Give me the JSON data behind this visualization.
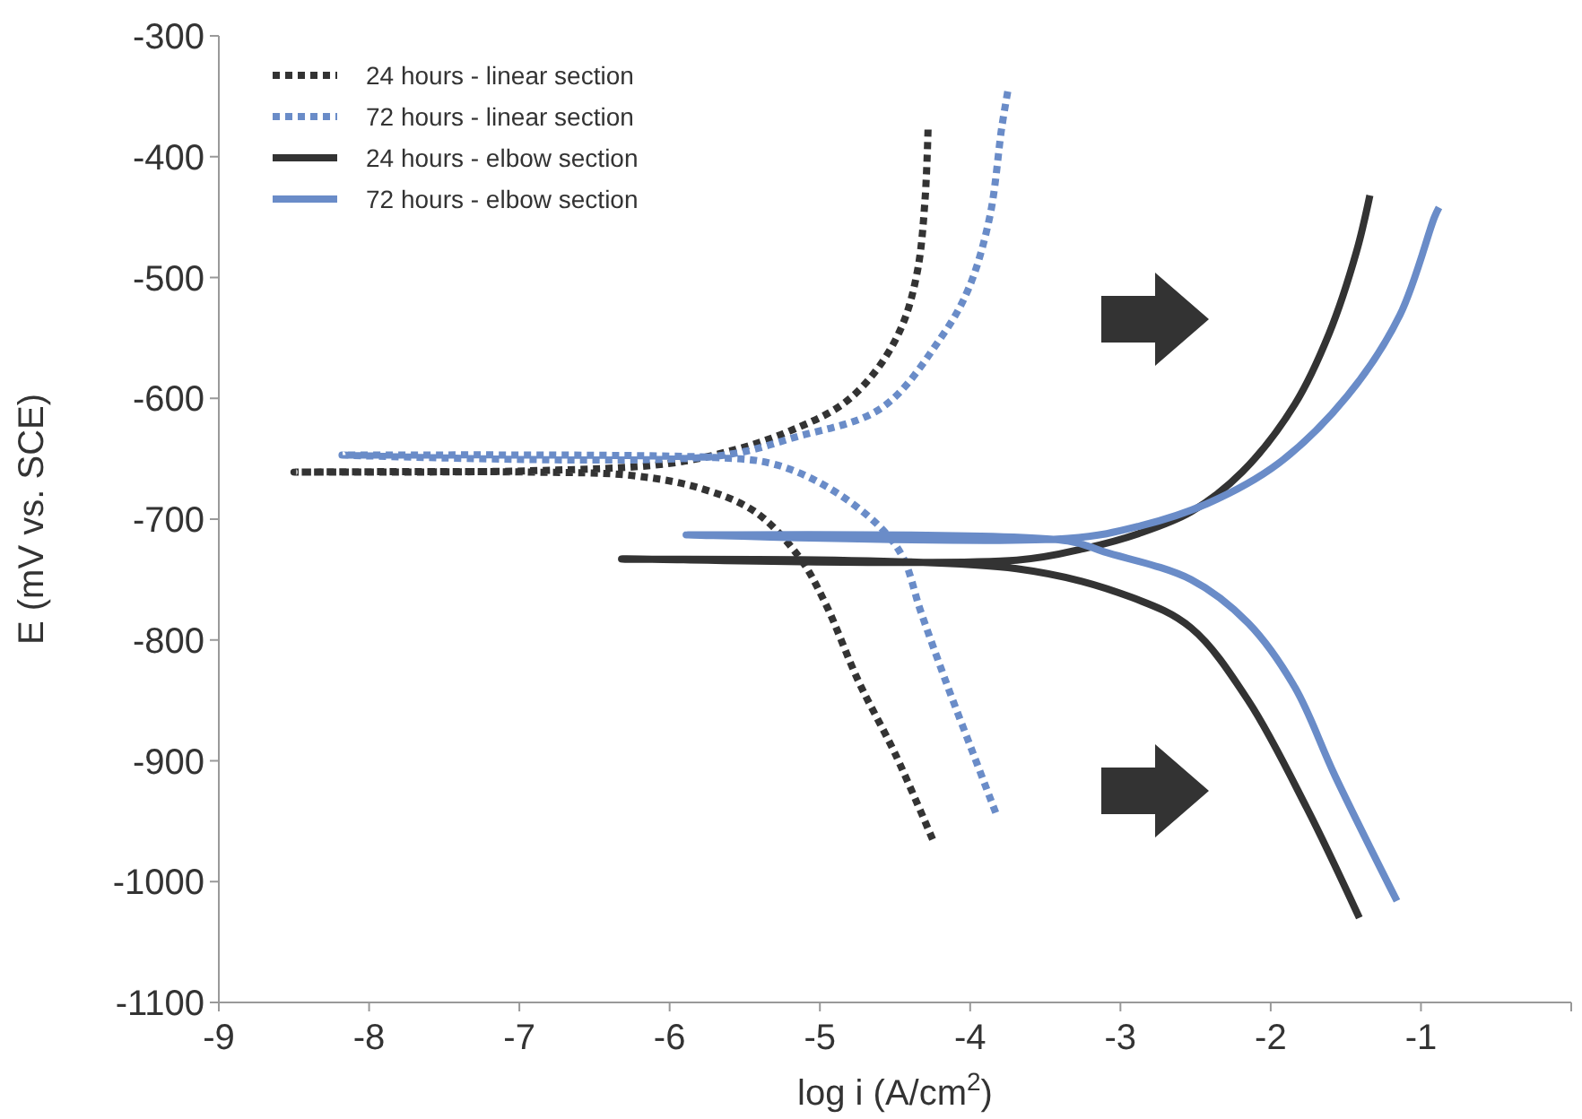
{
  "chart_data": {
    "type": "line",
    "xlabel": "log i (A/cm$^{2}$)",
    "ylabel": "E (mV vs. SCE)",
    "xlim": [
      -9,
      0
    ],
    "xticks": [
      -9,
      -8,
      -7,
      -6,
      -5,
      -4,
      -3,
      -2,
      -1,
      {
        "value": 0,
        "label": null
      }
    ],
    "ylim": [
      -1100,
      -300
    ],
    "yticks": [
      -1100,
      -1000,
      -900,
      -800,
      -700,
      -600,
      -500,
      -400,
      -300
    ],
    "grid": false,
    "legend": "top left",
    "marker": "none",
    "series": [
      {
        "name": "24 hours - linear section",
        "color": "#333333",
        "line_style": "dotted",
        "x": [
          -4.25,
          -4.5,
          -4.74,
          -4.97,
          -5.14,
          -5.43,
          -5.78,
          -6.24,
          -6.94,
          -8.5,
          -6.94,
          -6.01,
          -5.55,
          -5.2,
          -4.85,
          -4.62,
          -4.45,
          -4.35,
          -4.3,
          -4.28
        ],
        "values": [
          -965,
          -894,
          -835,
          -768,
          -731,
          -694,
          -675,
          -664,
          -661,
          -661,
          -660,
          -654,
          -642,
          -627,
          -605,
          -576,
          -539,
          -494,
          -435,
          -376
        ]
      },
      {
        "name": "72 hours - linear section",
        "color": "#6a8cc8",
        "line_style": "dotted",
        "x": [
          -3.83,
          -3.98,
          -4.16,
          -4.33,
          -4.45,
          -4.62,
          -4.97,
          -5.32,
          -5.7,
          -8.18,
          -5.7,
          -5.16,
          -4.59,
          -4.19,
          -4.01,
          -3.87,
          -3.79,
          -3.75
        ],
        "values": [
          -943,
          -894,
          -835,
          -776,
          -731,
          -704,
          -672,
          -654,
          -649,
          -647,
          -648,
          -632,
          -608,
          -549,
          -509,
          -450,
          -376,
          -346
        ]
      },
      {
        "name": "24 hours - elbow section",
        "color": "#333333",
        "line_style": "solid",
        "x": [
          -1.41,
          -1.76,
          -2.15,
          -2.53,
          -2.92,
          -3.69,
          -6.32,
          -3.69,
          -3.23,
          -2.88,
          -2.53,
          -2.19,
          -1.84,
          -1.61,
          -1.43,
          -1.34
        ],
        "values": [
          -1030,
          -939,
          -850,
          -790,
          -765,
          -741,
          -733,
          -734,
          -724,
          -712,
          -694,
          -661,
          -605,
          -546,
          -479,
          -432
        ]
      },
      {
        "name": "72 hours - elbow section",
        "color": "#6a8cc8",
        "line_style": "solid",
        "x": [
          -1.16,
          -1.57,
          -1.84,
          -2.15,
          -2.53,
          -3.11,
          -3.35,
          -5.89,
          -3.35,
          -2.88,
          -2.42,
          -1.95,
          -1.49,
          -1.14,
          -0.91,
          -0.88
        ],
        "values": [
          -1016,
          -913,
          -839,
          -786,
          -750,
          -727,
          -718,
          -713,
          -716,
          -706,
          -687,
          -654,
          -598,
          -531,
          -450,
          -442
        ]
      }
    ]
  }
}
